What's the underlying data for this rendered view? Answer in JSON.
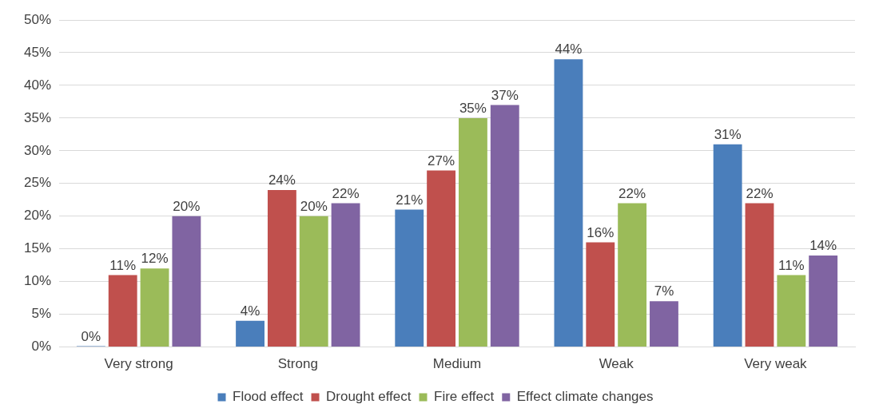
{
  "chart_data": {
    "type": "bar",
    "categories": [
      "Very strong",
      "Strong",
      "Medium",
      "Weak",
      "Very weak"
    ],
    "series": [
      {
        "name": "Flood effect",
        "color": "#4a7ebb",
        "values": [
          0,
          4,
          21,
          44,
          31
        ],
        "value_labels": [
          "0%",
          "4%",
          "21%",
          "44%",
          "31%"
        ]
      },
      {
        "name": "Drought effect",
        "color": "#c0504d",
        "values": [
          11,
          24,
          27,
          16,
          22
        ],
        "value_labels": [
          "11%",
          "24%",
          "27%",
          "16%",
          "22%"
        ]
      },
      {
        "name": "Fire effect",
        "color": "#9bbb59",
        "values": [
          12,
          20,
          35,
          22,
          11
        ],
        "value_labels": [
          "12%",
          "20%",
          "35%",
          "22%",
          "11%"
        ]
      },
      {
        "name": "Effect climate changes",
        "color": "#8064a2",
        "values": [
          20,
          22,
          37,
          7,
          14
        ],
        "value_labels": [
          "20%",
          "22%",
          "37%",
          "7%",
          "14%"
        ]
      }
    ],
    "ylim": [
      0,
      50
    ],
    "yticks": [
      {
        "value": 0,
        "label": "0%"
      },
      {
        "value": 5,
        "label": "5%"
      },
      {
        "value": 10,
        "label": "10%"
      },
      {
        "value": 15,
        "label": "15%"
      },
      {
        "value": 20,
        "label": "20%"
      },
      {
        "value": 25,
        "label": "25%"
      },
      {
        "value": 30,
        "label": "30%"
      },
      {
        "value": 35,
        "label": "35%"
      },
      {
        "value": 40,
        "label": "40%"
      },
      {
        "value": 45,
        "label": "45%"
      },
      {
        "value": 50,
        "label": "50%"
      }
    ],
    "grid": "y",
    "legend": "bottom"
  }
}
